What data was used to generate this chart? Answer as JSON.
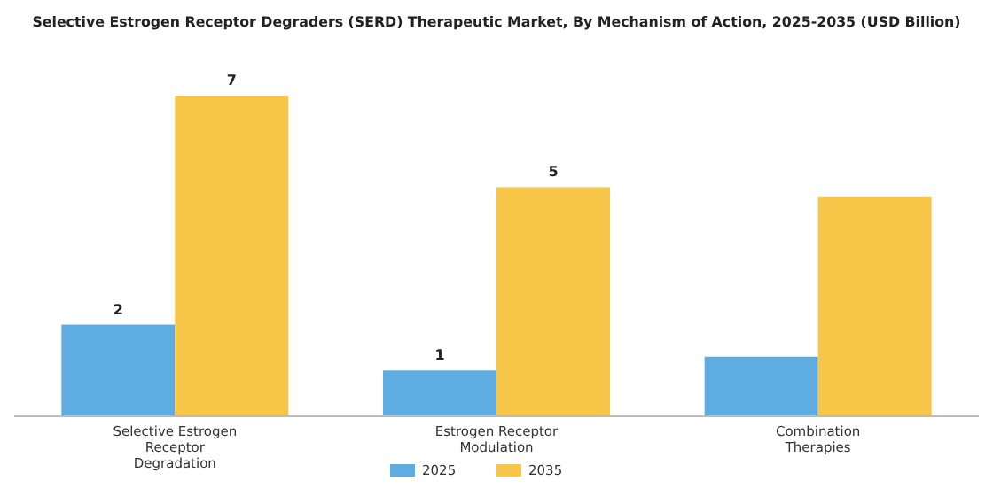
{
  "chart_data": {
    "type": "bar",
    "title": "Selective Estrogen Receptor Degraders (SERD) Therapeutic Market, By Mechanism of Action, 2025-2035 (USD Billion)",
    "categories": [
      "Selective Estrogen Receptor Degradation",
      "Estrogen Receptor Modulation",
      "Combination Therapies"
    ],
    "relative": false,
    "series": [
      {
        "name": "2025",
        "color": "#5dade2",
        "values": [
          2,
          1,
          1.3
        ],
        "value_labels": [
          "2",
          "1",
          null
        ]
      },
      {
        "name": "2035",
        "color": "#f7c548",
        "values": [
          7,
          5,
          4.8
        ],
        "value_labels": [
          "7",
          "5",
          null
        ]
      }
    ],
    "legend": "bottom"
  }
}
